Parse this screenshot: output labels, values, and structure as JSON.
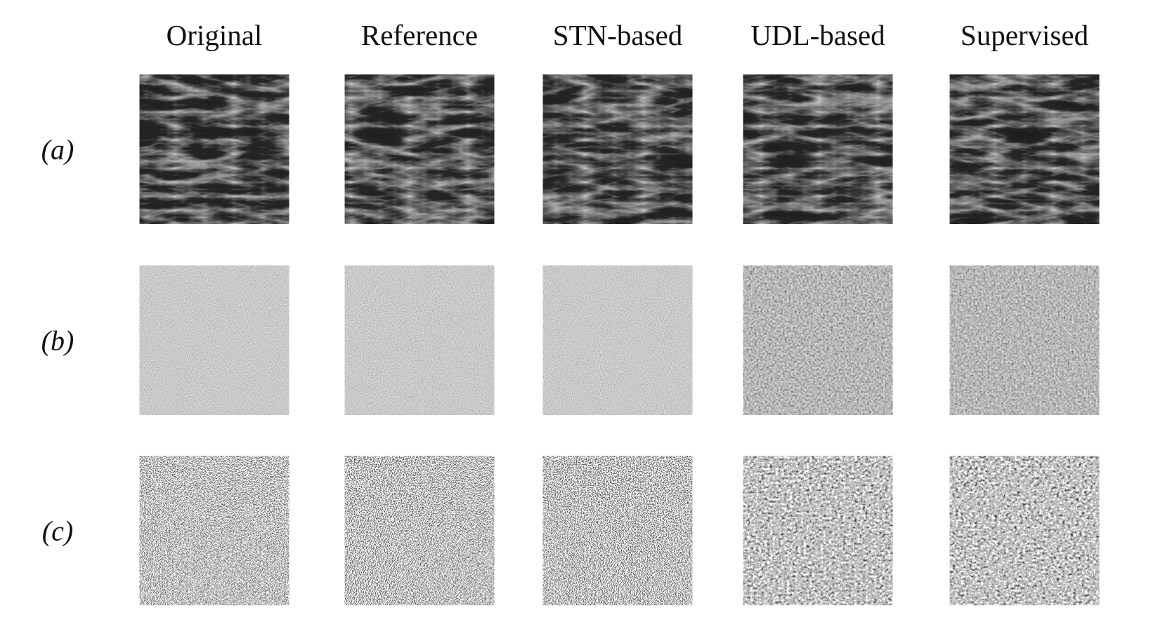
{
  "columns": [
    "Original",
    "Reference",
    "STN-based",
    "UDL-based",
    "Supervised"
  ],
  "rows": [
    "(a)",
    "(b)",
    "(c)"
  ]
}
